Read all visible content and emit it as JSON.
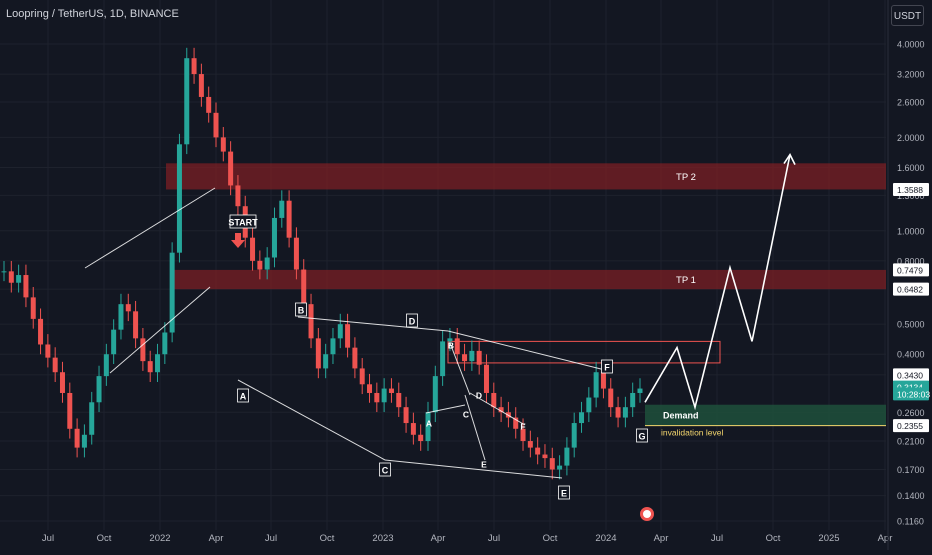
{
  "header": {
    "title": "Loopring / TetherUS, 1D, BINANCE",
    "currency": "USDT"
  },
  "colors": {
    "background": "#131722",
    "up": "#26a69a",
    "down": "#ef5350",
    "zone": "#7b1f24",
    "demand": "#1e4d3a",
    "invalidation": "#f5d76e",
    "drawing": "#ffffff"
  },
  "chart_data": {
    "type": "candlestick",
    "y_scale": "log",
    "ylim": [
      0.116,
      4.4
    ],
    "y_ticks": [
      "4.0000",
      "3.2000",
      "2.6000",
      "2.0000",
      "1.6000",
      "1.3000",
      "1.0000",
      "0.8000",
      "0.6482",
      "0.5000",
      "0.4000",
      "0.3430",
      "0.2600",
      "0.2100",
      "0.1700",
      "0.1400",
      "0.1160"
    ],
    "x_ticks": [
      "Jul",
      "Oct",
      "2022",
      "Apr",
      "Jul",
      "Oct",
      "2023",
      "Apr",
      "Jul",
      "Oct",
      "2024",
      "Apr",
      "Jul",
      "Oct",
      "2025",
      "Apr"
    ],
    "price_labels": [
      {
        "value": "1.3588",
        "price": 1.3588,
        "style": "white"
      },
      {
        "value": "0.7479",
        "price": 0.7479,
        "style": "white"
      },
      {
        "value": "0.6482",
        "price": 0.6482,
        "style": "white"
      },
      {
        "value": "0.3430",
        "price": 0.343,
        "style": "white"
      },
      {
        "value": "0.3134",
        "price": 0.3134,
        "style": "last"
      },
      {
        "value": "10:28:03",
        "price": 0.298,
        "style": "last"
      },
      {
        "value": "0.2355",
        "price": 0.2355,
        "style": "white"
      }
    ],
    "zones": [
      {
        "label": "TP 2",
        "from_price": 1.3588,
        "to_price": 1.65,
        "kind": "target"
      },
      {
        "label": "TP 1",
        "from_price": 0.6482,
        "to_price": 0.7479,
        "kind": "target"
      },
      {
        "label": "Demand",
        "from_price": 0.2355,
        "to_price": 0.275,
        "kind": "demand"
      },
      {
        "label": "",
        "from_price": 0.375,
        "to_price": 0.44,
        "kind": "outline"
      }
    ],
    "invalidation": {
      "label": "invalidation level",
      "price": 0.2355
    },
    "annotations": [
      "START",
      "A",
      "B",
      "C",
      "D",
      "E",
      "F",
      "G",
      "A",
      "B",
      "C",
      "D",
      "E",
      "F"
    ],
    "projection": [
      0.28,
      0.42,
      0.27,
      0.76,
      0.44,
      1.76
    ],
    "series_ohlc_close": [
      0.74,
      0.68,
      0.72,
      0.61,
      0.52,
      0.43,
      0.39,
      0.35,
      0.3,
      0.23,
      0.2,
      0.22,
      0.28,
      0.34,
      0.4,
      0.48,
      0.58,
      0.55,
      0.45,
      0.38,
      0.35,
      0.4,
      0.47,
      0.85,
      1.9,
      3.6,
      3.2,
      2.7,
      2.4,
      2.0,
      1.8,
      1.4,
      1.2,
      0.95,
      0.8,
      0.75,
      0.82,
      1.1,
      1.25,
      0.95,
      0.75,
      0.58,
      0.45,
      0.36,
      0.4,
      0.45,
      0.5,
      0.42,
      0.36,
      0.32,
      0.3,
      0.28,
      0.31,
      0.3,
      0.27,
      0.24,
      0.22,
      0.21,
      0.26,
      0.34,
      0.44,
      0.45,
      0.4,
      0.38,
      0.41,
      0.37,
      0.3,
      0.27,
      0.26,
      0.25,
      0.23,
      0.21,
      0.2,
      0.19,
      0.185,
      0.17,
      0.175,
      0.2,
      0.24,
      0.26,
      0.29,
      0.35,
      0.31,
      0.27,
      0.25,
      0.27,
      0.3,
      0.31
    ]
  }
}
